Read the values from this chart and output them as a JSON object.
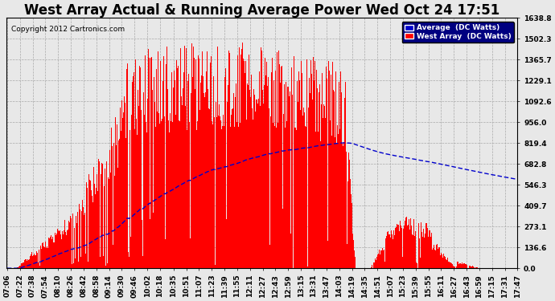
{
  "title": "West Array Actual & Running Average Power Wed Oct 24 17:51",
  "copyright": "Copyright 2012 Cartronics.com",
  "legend_avg": "Average  (DC Watts)",
  "legend_west": "West Array  (DC Watts)",
  "ymin": 0.0,
  "ymax": 1638.8,
  "yticks": [
    0.0,
    136.6,
    273.1,
    409.7,
    546.3,
    682.8,
    819.4,
    956.0,
    1092.6,
    1229.1,
    1365.7,
    1502.3,
    1638.8
  ],
  "bg_color": "#e8e8e8",
  "plot_bg_color": "#e8e8e8",
  "area_color": "#ff0000",
  "avg_line_color": "#0000cc",
  "grid_color": "#aaaaaa",
  "xtick_labels": [
    "07:06",
    "07:22",
    "07:38",
    "07:54",
    "08:10",
    "08:26",
    "08:42",
    "08:58",
    "09:14",
    "09:30",
    "09:46",
    "10:02",
    "10:18",
    "10:35",
    "10:51",
    "11:07",
    "11:23",
    "11:39",
    "11:55",
    "12:11",
    "12:27",
    "12:43",
    "12:59",
    "13:15",
    "13:31",
    "13:47",
    "14:03",
    "14:19",
    "14:35",
    "14:51",
    "15:07",
    "15:23",
    "15:39",
    "15:55",
    "16:11",
    "16:27",
    "16:43",
    "16:59",
    "17:15",
    "17:31",
    "17:47"
  ],
  "title_fontsize": 12,
  "label_fontsize": 6.5,
  "copyright_fontsize": 6.5
}
